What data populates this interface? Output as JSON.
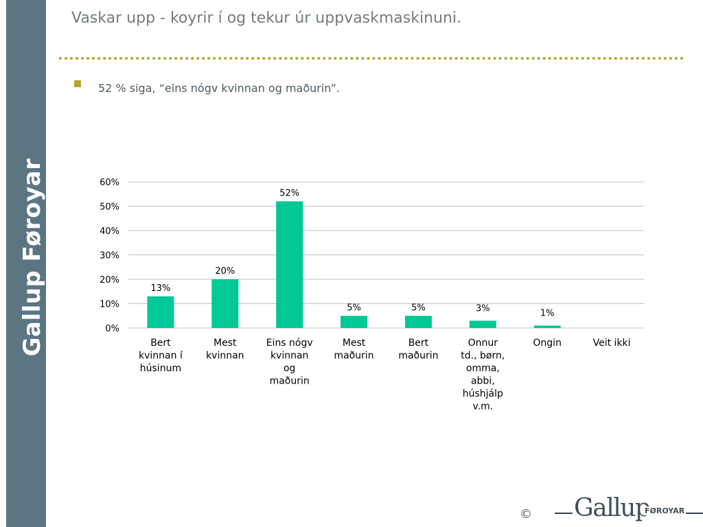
{
  "sidebar": {
    "brand": "Gallup Føroyar"
  },
  "header": {
    "title": "Vaskar upp - koyrir í og tekur úr uppvaskmaskinuni.",
    "bullet": "52 % siga, “eins nógv kvinnan og maðurin”."
  },
  "footer": {
    "copyright": "©",
    "logo_main": "Gallup",
    "logo_sub": "FØROYAR"
  },
  "colors": {
    "bar": "#00c896",
    "accent": "#b8a32a",
    "sidebar": "#5b7583"
  },
  "chart_data": {
    "type": "bar",
    "categories": [
      [
        "Bert",
        "kvinnan í",
        "húsinum"
      ],
      [
        "Mest",
        "kvinnan"
      ],
      [
        "Eins nógv",
        "kvinnan",
        "og",
        "maðurin"
      ],
      [
        "Mest",
        "maðurin"
      ],
      [
        "Bert",
        "maðurin"
      ],
      [
        "Onnur",
        "td., børn,",
        "omma,",
        "abbi,",
        "húshjálp",
        "v.m."
      ],
      [
        "Ongin"
      ],
      [
        "Veit  ikki"
      ]
    ],
    "values": [
      13,
      20,
      52,
      5,
      5,
      3,
      1,
      null
    ],
    "data_labels": [
      "13%",
      "20%",
      "52%",
      "5%",
      "5%",
      "3%",
      "1%",
      ""
    ],
    "yticks": [
      "0%",
      "10%",
      "20%",
      "30%",
      "40%",
      "50%",
      "60%"
    ],
    "ylim": [
      0,
      60
    ],
    "grid": true
  }
}
